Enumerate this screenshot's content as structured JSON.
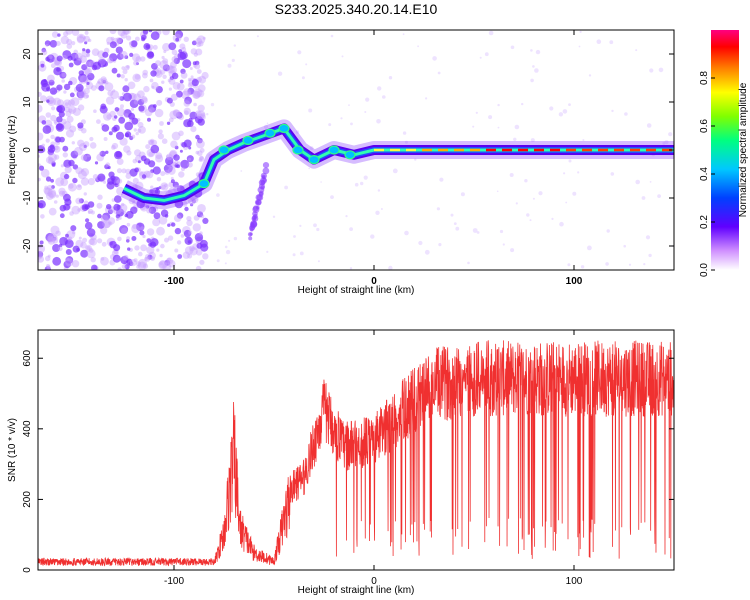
{
  "title": "S233.2025.340.20.14.E10",
  "colors": {
    "snr_line": "#f03030",
    "spectrogram_scatter": "#8a40ff",
    "axis": "#000000"
  },
  "chart_data": [
    {
      "type": "heatmap",
      "name": "spectrogram",
      "title": "S233.2025.340.20.14.E10",
      "xlabel": "Height of straight line (km)",
      "ylabel": "Frequency (Hz)",
      "xlim": [
        -168,
        150
      ],
      "ylim": [
        -25,
        25
      ],
      "xticks": [
        -100,
        0,
        100
      ],
      "yticks": [
        -20,
        -10,
        0,
        10,
        20
      ],
      "colorbar": {
        "label": "Normalized spectral amplitude",
        "range": [
          0,
          1
        ],
        "ticks": [
          "0.0",
          "0.2",
          "0.4",
          "0.6",
          "0.8"
        ],
        "colormap": [
          "#ffffff",
          "#c070ff",
          "#6000ff",
          "#0040ff",
          "#00c0ff",
          "#00ff80",
          "#80ff00",
          "#ffff00",
          "#ff8000",
          "#ff0000",
          "#ff0080"
        ]
      },
      "ridge": [
        {
          "x": -125,
          "y": -8
        },
        {
          "x": -115,
          "y": -10
        },
        {
          "x": -105,
          "y": -10.5
        },
        {
          "x": -95,
          "y": -9.5
        },
        {
          "x": -85,
          "y": -7
        },
        {
          "x": -80,
          "y": -2
        },
        {
          "x": -73,
          "y": 0
        },
        {
          "x": -65,
          "y": 1.5
        },
        {
          "x": -55,
          "y": 3
        },
        {
          "x": -45,
          "y": 4.5
        },
        {
          "x": -37,
          "y": 0
        },
        {
          "x": -30,
          "y": -2
        },
        {
          "x": -20,
          "y": 0
        },
        {
          "x": -10,
          "y": -1
        },
        {
          "x": 0,
          "y": 0
        },
        {
          "x": 20,
          "y": 0
        },
        {
          "x": 60,
          "y": 0
        },
        {
          "x": 100,
          "y": 0
        },
        {
          "x": 150,
          "y": 0
        }
      ]
    },
    {
      "type": "line",
      "name": "snr",
      "xlabel": "Height of straight line (km)",
      "ylabel": "SNR (10 * v/v)",
      "xlim": [
        -168,
        150
      ],
      "ylim": [
        0,
        680
      ],
      "xticks": [
        -100,
        0,
        100
      ],
      "yticks": [
        0,
        200,
        400,
        600
      ],
      "envelope": [
        {
          "x": -168,
          "y": 20
        },
        {
          "x": -80,
          "y": 20
        },
        {
          "x": -75,
          "y": 130
        },
        {
          "x": -70,
          "y": 410
        },
        {
          "x": -67,
          "y": 150
        },
        {
          "x": -60,
          "y": 60
        },
        {
          "x": -50,
          "y": 30
        },
        {
          "x": -42,
          "y": 260
        },
        {
          "x": -35,
          "y": 300
        },
        {
          "x": -25,
          "y": 520
        },
        {
          "x": -15,
          "y": 400
        },
        {
          "x": 0,
          "y": 420
        },
        {
          "x": 15,
          "y": 520
        },
        {
          "x": 30,
          "y": 600
        },
        {
          "x": 50,
          "y": 620
        },
        {
          "x": 100,
          "y": 620
        },
        {
          "x": 150,
          "y": 620
        }
      ]
    }
  ],
  "labels": {
    "top_xlabel": "Height of straight line (km)",
    "top_ylabel": "Frequency (Hz)",
    "bottom_xlabel": "Height of straight line (km)",
    "bottom_ylabel": "SNR (10 * v/v)",
    "colorbar_label": "Normalized spectral amplitude"
  }
}
